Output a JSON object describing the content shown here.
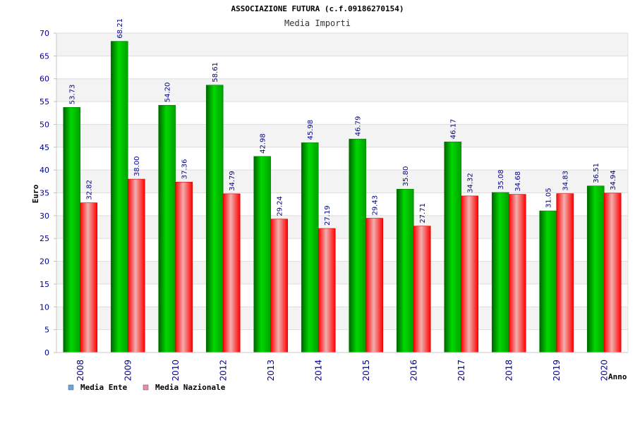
{
  "chart_data": {
    "type": "bar",
    "title": "ASSOCIAZIONE FUTURA (c.f.09186270154)",
    "subtitle": "Media Importi",
    "xlabel": "Anno",
    "ylabel": "Euro",
    "ylim": [
      0,
      70
    ],
    "ytick_step": 5,
    "grid": true,
    "legend_position": "bottom-left",
    "categories": [
      "2008",
      "2009",
      "2010",
      "2012",
      "2013",
      "2014",
      "2015",
      "2016",
      "2017",
      "2018",
      "2019",
      "2020"
    ],
    "series": [
      {
        "name": "Media Ente",
        "values": [
          53.73,
          68.21,
          54.2,
          58.61,
          42.98,
          45.98,
          46.79,
          35.8,
          46.17,
          35.08,
          31.05,
          36.51
        ],
        "labels": [
          "53.73",
          "68.21",
          "54.20",
          "58.61",
          "42.98",
          "45.98",
          "46.79",
          "35.80",
          "46.17",
          "35.08",
          "31.05",
          "36.51"
        ],
        "color": "#00c000",
        "legend_color": "#6aa3e8"
      },
      {
        "name": "Media Nazionale",
        "values": [
          32.82,
          38.0,
          37.36,
          34.79,
          29.24,
          27.19,
          29.43,
          27.71,
          34.32,
          34.68,
          34.83,
          34.94
        ],
        "labels": [
          "32.82",
          "38.00",
          "37.36",
          "34.79",
          "29.24",
          "27.19",
          "29.43",
          "27.71",
          "34.32",
          "34.68",
          "34.83",
          "34.94"
        ],
        "color": "#ff0000",
        "legend_color": "#e58bb5"
      }
    ]
  }
}
